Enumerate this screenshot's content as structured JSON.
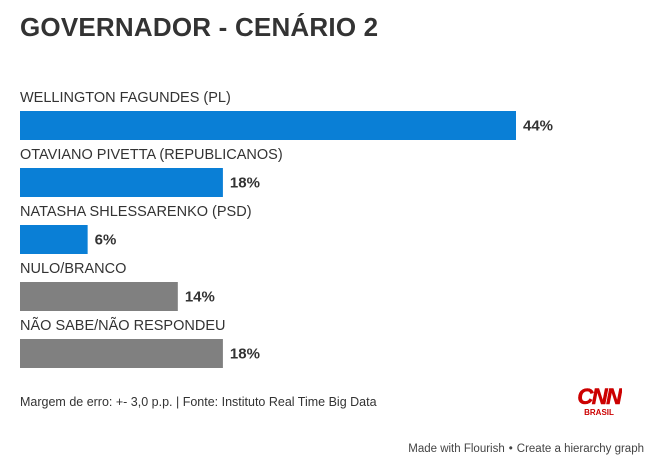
{
  "title": "GOVERNADOR - CENÁRIO 2",
  "footnote": "Margem de erro: +- 3,0 p.p. | Fonte: Instituto Real Time Big Data",
  "logo": {
    "line1": "CNN",
    "line2": "BRASIL",
    "color": "#cc0000"
  },
  "credit": {
    "made_with": "Made with Flourish",
    "separator": "•",
    "link": "Create a hierarchy graph"
  },
  "colors": {
    "candidate": "#0a7fd6",
    "other": "#808080"
  },
  "chart_data": {
    "type": "bar",
    "orientation": "horizontal",
    "title": "GOVERNADOR - CENÁRIO 2",
    "categories": [
      "WELLINGTON FAGUNDES (PL)",
      "OTAVIANO PIVETTA (REPUBLICANOS)",
      "NATASHA SHLESSARENKO (PSD)",
      "NULO/BRANCO",
      "NÃO SABE/NÃO RESPONDEU"
    ],
    "values": [
      44,
      18,
      6,
      14,
      18
    ],
    "value_labels": [
      "44%",
      "18%",
      "6%",
      "14%",
      "18%"
    ],
    "bar_colors": [
      "#0a7fd6",
      "#0a7fd6",
      "#0a7fd6",
      "#808080",
      "#808080"
    ],
    "xlim": [
      0,
      44
    ],
    "grid": false,
    "legend": "none"
  }
}
